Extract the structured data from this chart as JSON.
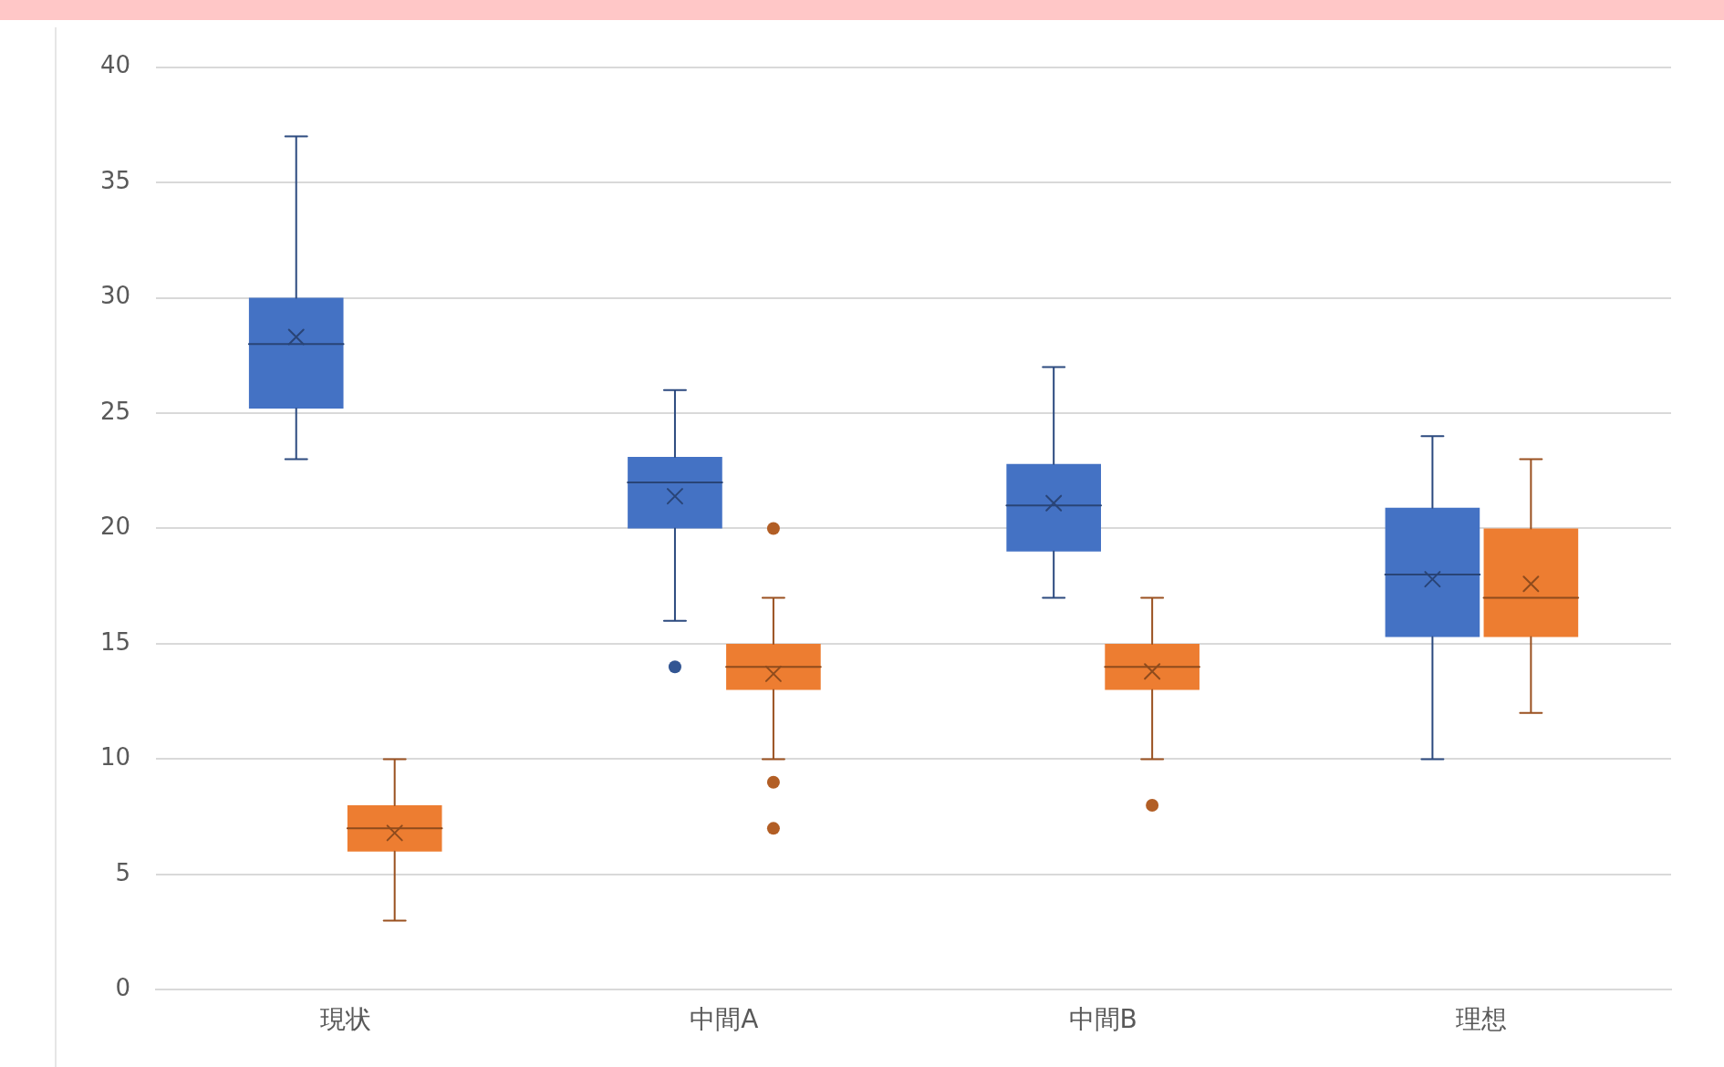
{
  "chart_data": {
    "type": "box",
    "categories": [
      "現状",
      "中間A",
      "中間B",
      "理想"
    ],
    "series": [
      {
        "color": "#4472c4",
        "boxes": [
          {
            "low": 23,
            "q1": 25.2,
            "median": 28,
            "q3": 30,
            "high": 37,
            "mean": 28.3
          },
          {
            "low": 16,
            "q1": 20,
            "median": 22,
            "q3": 23.1,
            "high": 26,
            "mean": 21.4,
            "outliers": [
              14
            ]
          },
          {
            "low": 17,
            "q1": 19,
            "median": 21,
            "q3": 22.8,
            "high": 27,
            "mean": 21.1
          },
          {
            "low": 10,
            "q1": 15.3,
            "median": 18,
            "q3": 20.9,
            "high": 24,
            "mean": 17.8
          }
        ]
      },
      {
        "color": "#ed7d31",
        "boxes": [
          {
            "low": 3,
            "q1": 6,
            "median": 7,
            "q3": 8,
            "high": 10,
            "mean": 6.8
          },
          {
            "low": 10,
            "q1": 13,
            "median": 14,
            "q3": 15,
            "high": 17,
            "mean": 13.7,
            "outliers": [
              20,
              9,
              7
            ]
          },
          {
            "low": 10,
            "q1": 13,
            "median": 14,
            "q3": 15,
            "high": 17,
            "mean": 13.8,
            "outliers": [
              8
            ]
          },
          {
            "low": 12,
            "q1": 15.3,
            "median": 17,
            "q3": 20,
            "high": 23,
            "mean": 17.6
          }
        ]
      }
    ],
    "ylim": [
      0,
      40
    ],
    "yticks": [
      0,
      5,
      10,
      15,
      20,
      25,
      30,
      35,
      40
    ],
    "grid": "y"
  }
}
